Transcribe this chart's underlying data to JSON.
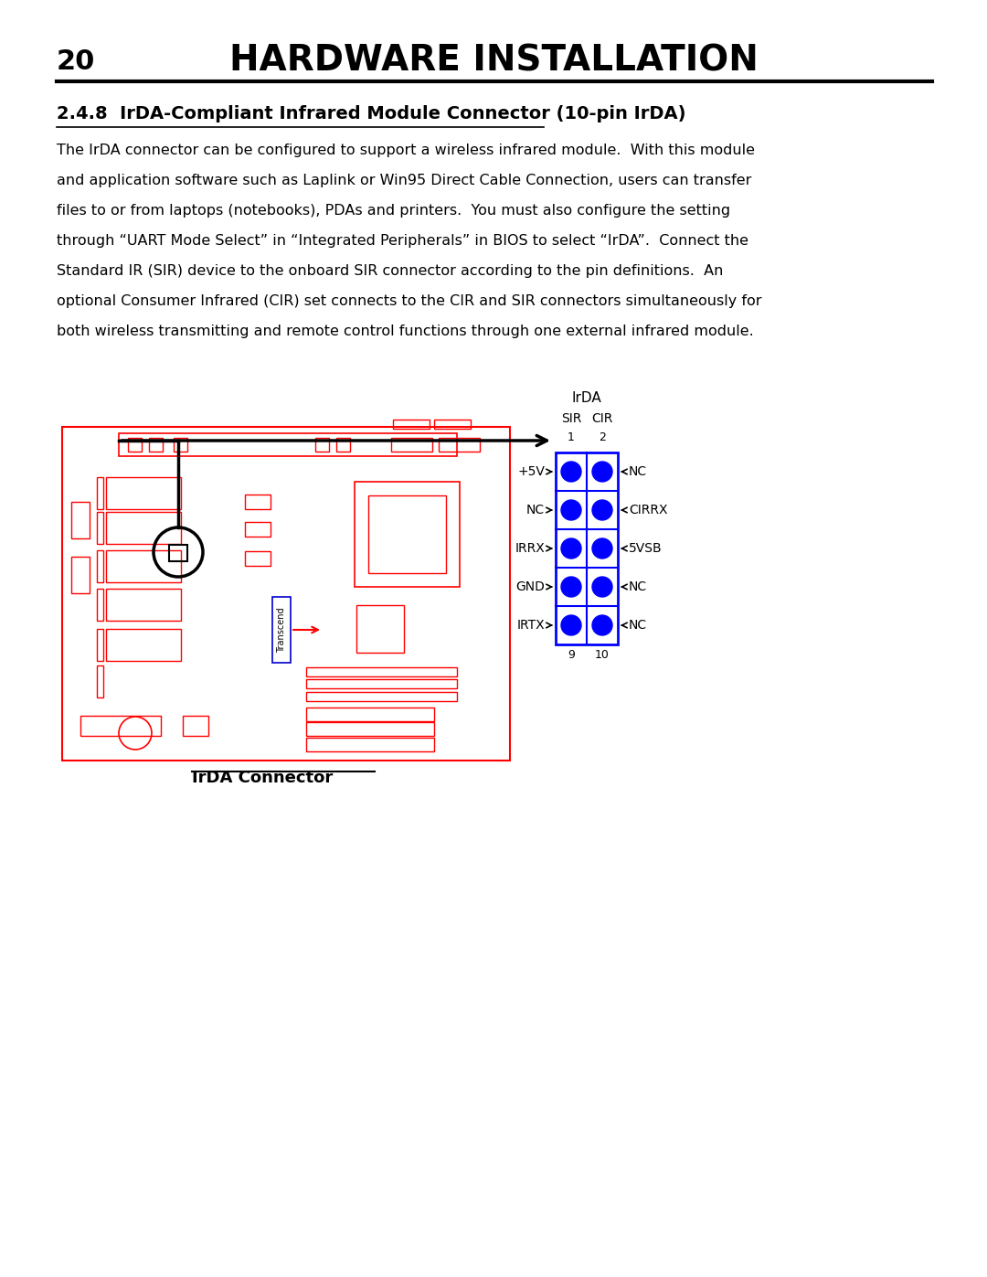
{
  "page_number": "20",
  "header_title": "HARDWARE INSTALLATION",
  "section_title": "2.4.8  IrDA-Compliant Infrared Module Connector (10-pin IrDA)",
  "body_lines": [
    "The IrDA connector can be configured to support a wireless infrared module.  With this module",
    "and application software such as Laplink or Win95 Direct Cable Connection, users can transfer",
    "files to or from laptops (notebooks), PDAs and printers.  You must also configure the setting",
    "through “UART Mode Select” in “Integrated Peripherals” in BIOS to select “IrDA”.  Connect the",
    "Standard IR (SIR) device to the onboard SIR connector according to the pin definitions.  An",
    "optional Consumer Infrared (CIR) set connects to the CIR and SIR connectors simultaneously for",
    "both wireless transmitting and remote control functions through one external infrared module."
  ],
  "connector_label": "IrDA Connector",
  "irda_label": "IrDA",
  "sir_label": "SIR",
  "cir_label": "CIR",
  "pin1_label": "1",
  "pin2_label": "2",
  "pin9_label": "9",
  "pin10_label": "10",
  "left_labels": [
    "+5V",
    "NC",
    "IRRX",
    "GND",
    "IRTX"
  ],
  "right_labels": [
    "NC",
    "CIRRX",
    "5VSB",
    "NC",
    "NC"
  ],
  "dot_color": "#0000FF",
  "box_color": "#0000FF",
  "board_color": "#FF0000",
  "arrow_color": "#000000",
  "bg_color": "#FFFFFF",
  "transcend_label": "Transcend",
  "transcend_arrow_color": "#FF0000"
}
